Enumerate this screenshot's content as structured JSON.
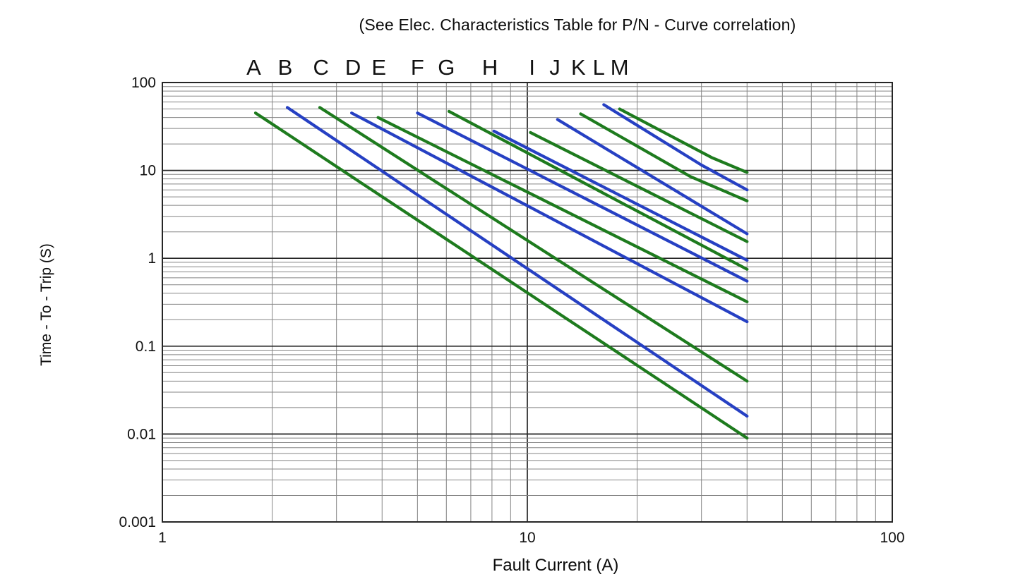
{
  "page": {
    "title": "(See Elec. Characteristics Table for P/N - Curve correlation)"
  },
  "chart_data": {
    "type": "line",
    "title": "(See Elec. Characteristics Table for P/N - Curve correlation)",
    "xlabel": "Fault Current (A)",
    "ylabel": "Time - To - Trip (S)",
    "x_scale": "log",
    "y_scale": "log",
    "xlim": [
      1,
      100
    ],
    "ylim": [
      0.001,
      100
    ],
    "grid": true,
    "legend_position": "letters above curve tops",
    "x_ticks": [
      {
        "value": 1,
        "label": "1"
      },
      {
        "value": 10,
        "label": "10"
      },
      {
        "value": 100,
        "label": "100"
      }
    ],
    "y_ticks": [
      {
        "value": 100,
        "label": "100"
      },
      {
        "value": 10,
        "label": "10"
      },
      {
        "value": 1,
        "label": "1"
      },
      {
        "value": 0.1,
        "label": "0.1"
      },
      {
        "value": 0.01,
        "label": "0.01"
      },
      {
        "value": 0.001,
        "label": "0.001"
      }
    ],
    "colors": {
      "green": "#1e7b1e",
      "blue": "#2640c3",
      "grid_minor": "#858585",
      "grid_major": "#262626",
      "text": "#111111"
    },
    "series": [
      {
        "name": "A",
        "color": "green",
        "label_x": 1.78,
        "points": [
          [
            1.8,
            45
          ],
          [
            40,
            0.009
          ]
        ]
      },
      {
        "name": "B",
        "color": "blue",
        "label_x": 2.17,
        "points": [
          [
            2.2,
            52
          ],
          [
            40,
            0.016
          ]
        ]
      },
      {
        "name": "C",
        "color": "green",
        "label_x": 2.72,
        "points": [
          [
            2.7,
            52
          ],
          [
            40,
            0.04
          ]
        ]
      },
      {
        "name": "D",
        "color": "blue",
        "label_x": 3.33,
        "points": [
          [
            3.3,
            45
          ],
          [
            40,
            0.19
          ]
        ]
      },
      {
        "name": "E",
        "color": "green",
        "label_x": 3.92,
        "points": [
          [
            3.9,
            40
          ],
          [
            40,
            0.32
          ]
        ]
      },
      {
        "name": "F",
        "color": "blue",
        "label_x": 5.0,
        "points": [
          [
            5.0,
            45
          ],
          [
            40,
            0.55
          ]
        ]
      },
      {
        "name": "G",
        "color": "green",
        "label_x": 6.0,
        "points": [
          [
            6.1,
            47
          ],
          [
            40,
            0.75
          ]
        ]
      },
      {
        "name": "H",
        "color": "blue",
        "label_x": 7.9,
        "points": [
          [
            8.1,
            28
          ],
          [
            40,
            0.95
          ]
        ]
      },
      {
        "name": "I",
        "color": "green",
        "label_x": 10.3,
        "points": [
          [
            10.2,
            27
          ],
          [
            40,
            1.55
          ]
        ]
      },
      {
        "name": "J",
        "color": "blue",
        "label_x": 11.9,
        "points": [
          [
            12.1,
            38
          ],
          [
            40,
            1.9
          ]
        ]
      },
      {
        "name": "K",
        "color": "green",
        "label_x": 13.8,
        "points": [
          [
            14.0,
            44
          ],
          [
            28,
            8.5
          ],
          [
            40,
            4.5
          ]
        ]
      },
      {
        "name": "L",
        "color": "blue",
        "label_x": 15.7,
        "points": [
          [
            16.2,
            56
          ],
          [
            30,
            11.5
          ],
          [
            40,
            6.0
          ]
        ]
      },
      {
        "name": "M",
        "color": "green",
        "label_x": 17.9,
        "points": [
          [
            17.9,
            50
          ],
          [
            32,
            14
          ],
          [
            40,
            9.5
          ]
        ]
      }
    ]
  }
}
